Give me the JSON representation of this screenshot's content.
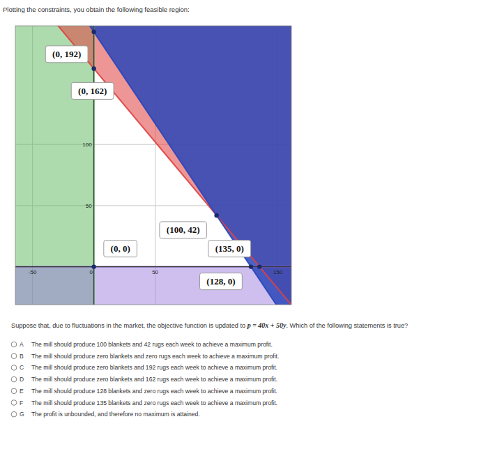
{
  "caption": "Plotting the constraints, you obtain the following feasible region:",
  "chart_data": {
    "type": "feasible_region",
    "xlim": [
      -64,
      161
    ],
    "ylim": [
      -31,
      197
    ],
    "xticks": [
      -50,
      0,
      50,
      150
    ],
    "yticks": [
      50,
      100
    ],
    "grid": true,
    "constraints": [
      {
        "a": -1,
        "b": 0,
        "c": 0,
        "color": "#5cb85c"
      },
      {
        "a": 0,
        "b": -1,
        "c": 0,
        "color": "#9370db"
      },
      {
        "a": 6,
        "b": 5,
        "c": 810,
        "color": "#e04040"
      },
      {
        "a": 3,
        "b": 2,
        "c": 384,
        "color": "#2a46b8"
      }
    ],
    "annotations": [
      {
        "text": "(0, 192)",
        "x": 0,
        "y": 192
      },
      {
        "text": "(0, 162)",
        "x": 0,
        "y": 162
      },
      {
        "text": "(0, 0)",
        "x": 0,
        "y": 0
      },
      {
        "text": "(100, 42)",
        "x": 100,
        "y": 42
      },
      {
        "text": "(135, 0)",
        "x": 135,
        "y": 0
      },
      {
        "text": "(128, 0)",
        "x": 128,
        "y": 0
      }
    ]
  },
  "question": {
    "before": "Suppose that, due to fluctuations in the market, the objective function is updated to ",
    "formula": "p = 40x + 50y",
    "after": ". Which of the following statements is true?"
  },
  "options": [
    {
      "letter": "A",
      "text": "The mill should produce 100 blankets and 42 rugs each week to achieve a maximum profit."
    },
    {
      "letter": "B",
      "text": "The mill should produce zero blankets and zero rugs each week to achieve a maximum profit."
    },
    {
      "letter": "C",
      "text": "The mill should produce zero blankets and 192 rugs each week to achieve a maximum profit."
    },
    {
      "letter": "D",
      "text": "The mill should produce zero blankets and 162 rugs each week to achieve a maximum profit."
    },
    {
      "letter": "E",
      "text": "The mill should produce 128 blankets and zero rugs each week to achieve a maximum profit."
    },
    {
      "letter": "F",
      "text": "The mill should produce 135 blankets and zero rugs each week to achieve a maximum profit."
    },
    {
      "letter": "G",
      "text": "The profit is unbounded, and therefore no maximum is attained."
    }
  ]
}
